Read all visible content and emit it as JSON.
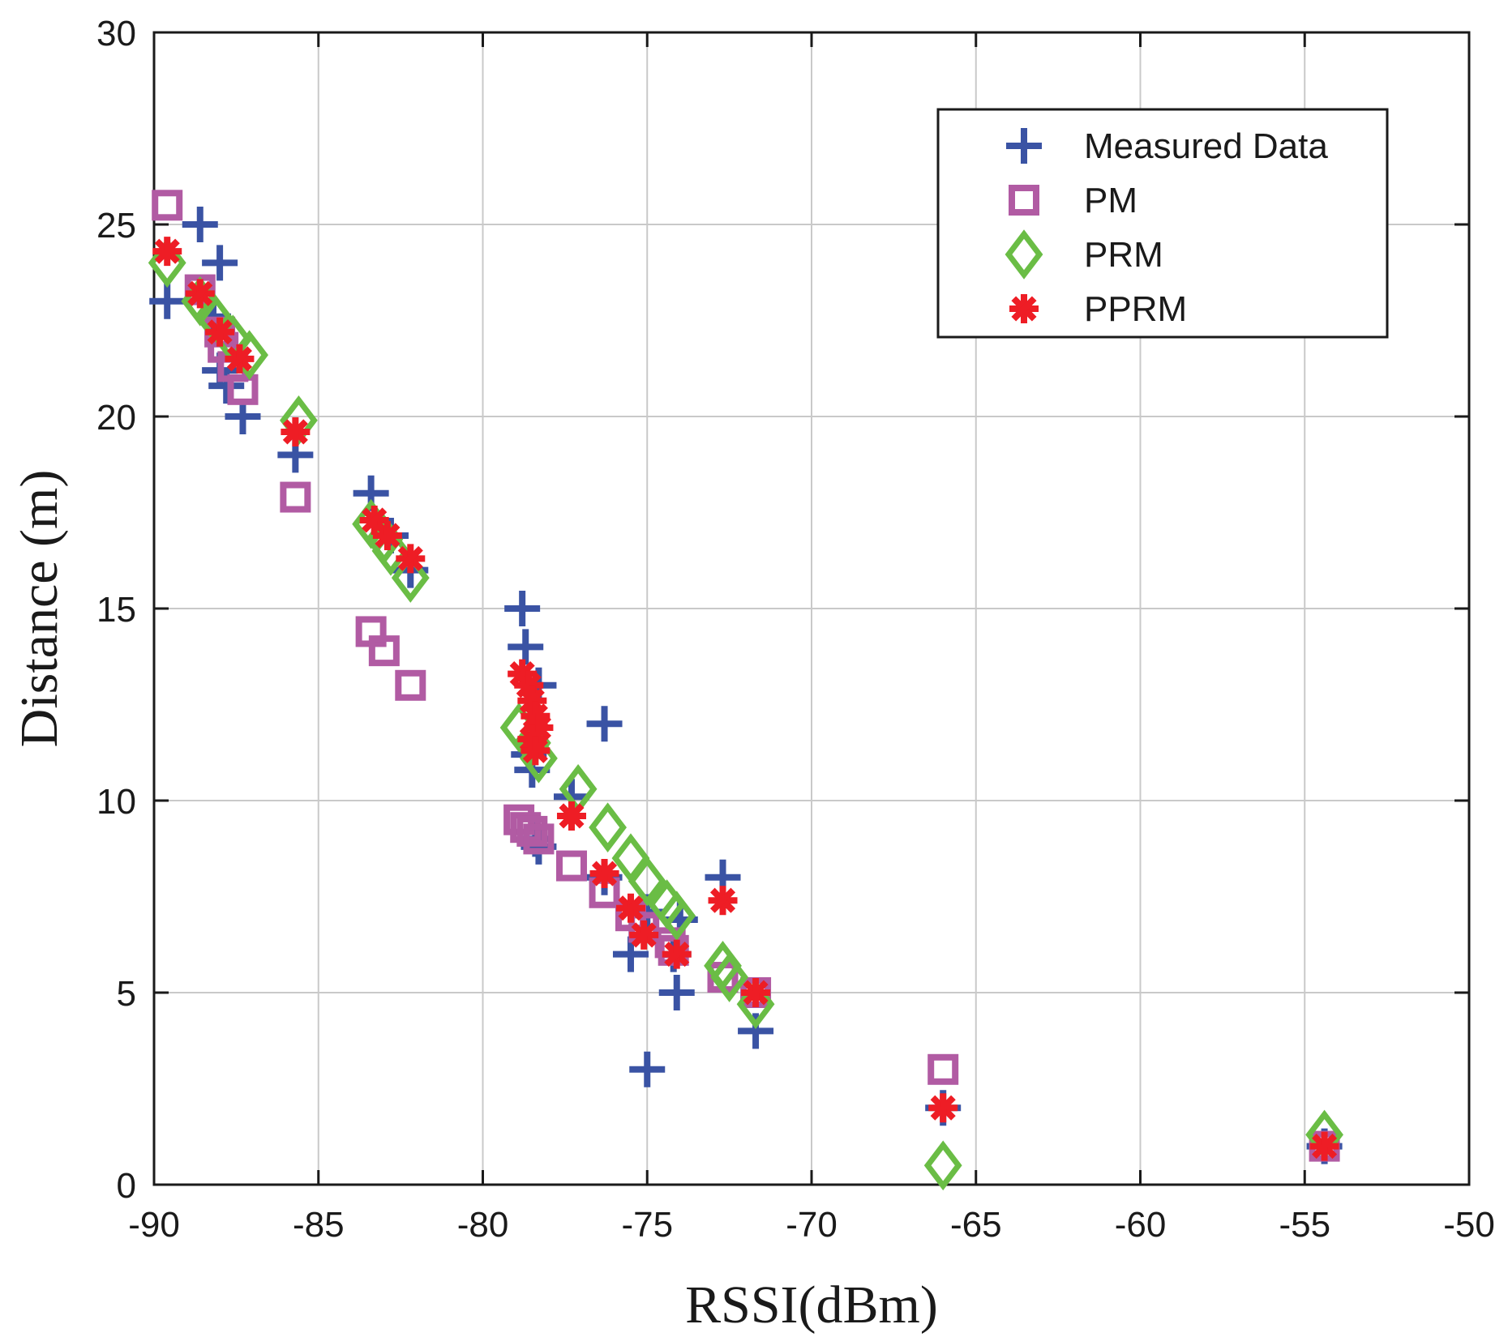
{
  "chart_data": {
    "type": "scatter",
    "title": "",
    "xlabel": "RSSI(dBm)",
    "ylabel": "Distance (m)",
    "xlim": [
      -90,
      -50
    ],
    "ylim": [
      0,
      30
    ],
    "xticks": [
      -90,
      -85,
      -80,
      -75,
      -70,
      -65,
      -60,
      -55,
      -50
    ],
    "yticks": [
      0,
      5,
      10,
      15,
      20,
      25,
      30
    ],
    "grid": true,
    "legend_position": "top-right",
    "series": [
      {
        "name": "Measured Data",
        "marker": "plus",
        "color": "#3a53a4",
        "points": [
          [
            -89.6,
            23
          ],
          [
            -88.6,
            25
          ],
          [
            -88.0,
            24
          ],
          [
            -88.2,
            22.6
          ],
          [
            -88.0,
            21.2
          ],
          [
            -87.8,
            20.8
          ],
          [
            -87.3,
            20
          ],
          [
            -85.7,
            19
          ],
          [
            -83.4,
            18
          ],
          [
            -82.8,
            16.9
          ],
          [
            -82.2,
            16
          ],
          [
            -78.8,
            15
          ],
          [
            -78.7,
            14
          ],
          [
            -78.3,
            13
          ],
          [
            -78.6,
            11.2
          ],
          [
            -78.5,
            10.8
          ],
          [
            -77.3,
            10.1
          ],
          [
            -76.3,
            12
          ],
          [
            -78.4,
            9.0
          ],
          [
            -78.3,
            8.8
          ],
          [
            -76.3,
            8
          ],
          [
            -75.5,
            6
          ],
          [
            -75.0,
            7.1
          ],
          [
            -74.0,
            6.9
          ],
          [
            -74.2,
            6
          ],
          [
            -74.1,
            5
          ],
          [
            -75.0,
            3
          ],
          [
            -72.7,
            8
          ],
          [
            -71.7,
            4
          ],
          [
            -66.0,
            2
          ],
          [
            -54.4,
            1
          ]
        ]
      },
      {
        "name": "PM",
        "marker": "square",
        "color": "#b15ba3",
        "points": [
          [
            -89.6,
            25.5
          ],
          [
            -88.6,
            23.3
          ],
          [
            -88.0,
            22.2
          ],
          [
            -87.9,
            21.8
          ],
          [
            -87.6,
            21.3
          ],
          [
            -87.3,
            20.7
          ],
          [
            -85.7,
            17.9
          ],
          [
            -83.4,
            14.4
          ],
          [
            -83.0,
            13.9
          ],
          [
            -82.2,
            13
          ],
          [
            -78.9,
            9.5
          ],
          [
            -78.7,
            9.3
          ],
          [
            -78.5,
            9.2
          ],
          [
            -78.3,
            9.0
          ],
          [
            -77.3,
            8.3
          ],
          [
            -76.3,
            7.6
          ],
          [
            -75.5,
            7.0
          ],
          [
            -75.1,
            6.7
          ],
          [
            -74.3,
            6.3
          ],
          [
            -74.2,
            6.1
          ],
          [
            -72.7,
            5.4
          ],
          [
            -71.7,
            5.0
          ],
          [
            -66.0,
            3.0
          ],
          [
            -54.4,
            1.0
          ]
        ]
      },
      {
        "name": "PRM",
        "marker": "diamond",
        "color": "#6abd45",
        "points": [
          [
            -89.6,
            24
          ],
          [
            -88.6,
            23
          ],
          [
            -88.2,
            22.6
          ],
          [
            -87.6,
            22.0
          ],
          [
            -87.1,
            21.6
          ],
          [
            -85.6,
            19.9
          ],
          [
            -83.4,
            17.2
          ],
          [
            -83.0,
            16.8
          ],
          [
            -82.8,
            16.5
          ],
          [
            -82.2,
            15.8
          ],
          [
            -78.9,
            11.9
          ],
          [
            -78.5,
            11.5
          ],
          [
            -78.3,
            11.1
          ],
          [
            -77.1,
            10.3
          ],
          [
            -76.2,
            9.3
          ],
          [
            -75.5,
            8.5
          ],
          [
            -75.0,
            7.9
          ],
          [
            -74.4,
            7.3
          ],
          [
            -74.1,
            7.0
          ],
          [
            -72.7,
            5.7
          ],
          [
            -72.5,
            5.4
          ],
          [
            -71.7,
            4.7
          ],
          [
            -66.0,
            0.5
          ],
          [
            -54.4,
            1.3
          ]
        ]
      },
      {
        "name": "PPRM",
        "marker": "asterisk",
        "color": "#ee1d25",
        "points": [
          [
            -89.6,
            24.3
          ],
          [
            -88.6,
            23.2
          ],
          [
            -88.0,
            22.2
          ],
          [
            -87.4,
            21.5
          ],
          [
            -85.7,
            19.6
          ],
          [
            -83.3,
            17.3
          ],
          [
            -82.9,
            16.9
          ],
          [
            -82.2,
            16.3
          ],
          [
            -78.8,
            13.3
          ],
          [
            -78.6,
            13.0
          ],
          [
            -78.5,
            12.6
          ],
          [
            -78.4,
            12.2
          ],
          [
            -78.3,
            11.9
          ],
          [
            -78.5,
            11.6
          ],
          [
            -78.4,
            11.3
          ],
          [
            -77.3,
            9.6
          ],
          [
            -76.3,
            8.1
          ],
          [
            -75.5,
            7.2
          ],
          [
            -75.1,
            6.5
          ],
          [
            -74.1,
            6.0
          ],
          [
            -72.7,
            7.4
          ],
          [
            -71.7,
            5.0
          ],
          [
            -66.0,
            2.0
          ],
          [
            -54.4,
            1.0
          ]
        ]
      }
    ]
  }
}
